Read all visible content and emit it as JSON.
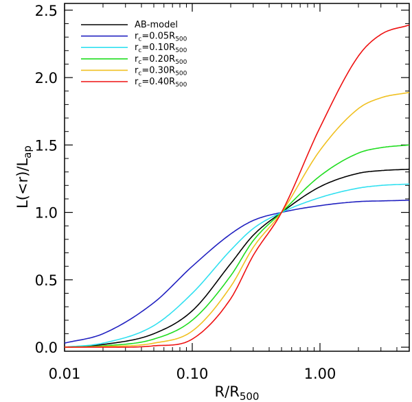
{
  "chart_data": {
    "type": "line",
    "xlabel": {
      "main": "R/R",
      "sub": "500"
    },
    "ylabel": {
      "main": "L(<r)/L",
      "sub": "ap"
    },
    "xscale": "log",
    "xlim": [
      0.01,
      5.0
    ],
    "ylim": [
      -0.03,
      2.55
    ],
    "xticks": [
      0.01,
      0.1,
      1.0
    ],
    "xtick_labels": [
      "0.01",
      "0.10",
      "1.00"
    ],
    "yticks": [
      0.0,
      0.5,
      1.0,
      1.5,
      2.0,
      2.5
    ],
    "ytick_labels": [
      "0.0",
      "0.5",
      "1.0",
      "1.5",
      "2.0",
      "2.5"
    ],
    "grid": false,
    "legend_position": "top-left",
    "series": [
      {
        "name": "AB-model",
        "label_main": "AB-model",
        "label_sub": "",
        "label_tail": "",
        "color": "#000000",
        "x": [
          0.01,
          0.02,
          0.05,
          0.1,
          0.2,
          0.3,
          0.5,
          1.0,
          2.0,
          3.0,
          5.0
        ],
        "y": [
          0.0,
          0.02,
          0.1,
          0.27,
          0.62,
          0.83,
          1.0,
          1.19,
          1.29,
          1.31,
          1.32
        ]
      },
      {
        "name": "r_c=0.05R_500",
        "label_main": "r",
        "label_sub": "c",
        "label_mid": "=0.05R",
        "label_tail": "500",
        "color": "#2020c0",
        "x": [
          0.01,
          0.02,
          0.05,
          0.1,
          0.2,
          0.3,
          0.5,
          1.0,
          2.0,
          3.0,
          5.0
        ],
        "y": [
          0.03,
          0.1,
          0.33,
          0.6,
          0.84,
          0.94,
          1.0,
          1.05,
          1.08,
          1.085,
          1.09
        ]
      },
      {
        "name": "r_c=0.10R_500",
        "label_main": "r",
        "label_sub": "c",
        "label_mid": "=0.10R",
        "label_tail": "500",
        "color": "#30e0f0",
        "x": [
          0.01,
          0.02,
          0.05,
          0.1,
          0.2,
          0.3,
          0.5,
          1.0,
          2.0,
          3.0,
          5.0
        ],
        "y": [
          0.0,
          0.03,
          0.16,
          0.4,
          0.72,
          0.88,
          1.0,
          1.11,
          1.18,
          1.2,
          1.21
        ]
      },
      {
        "name": "r_c=0.20R_500",
        "label_main": "r",
        "label_sub": "c",
        "label_mid": "=0.20R",
        "label_tail": "500",
        "color": "#20dd20",
        "x": [
          0.01,
          0.02,
          0.05,
          0.1,
          0.2,
          0.3,
          0.5,
          1.0,
          2.0,
          3.0,
          5.0
        ],
        "y": [
          0.0,
          0.01,
          0.06,
          0.2,
          0.53,
          0.79,
          1.0,
          1.27,
          1.44,
          1.48,
          1.5
        ]
      },
      {
        "name": "r_c=0.30R_500",
        "label_main": "r",
        "label_sub": "c",
        "label_mid": "=0.30R",
        "label_tail": "500",
        "color": "#f0c020",
        "x": [
          0.01,
          0.02,
          0.05,
          0.1,
          0.2,
          0.3,
          0.5,
          1.0,
          2.0,
          3.0,
          5.0
        ],
        "y": [
          0.0,
          0.005,
          0.03,
          0.12,
          0.45,
          0.74,
          1.0,
          1.46,
          1.77,
          1.85,
          1.89
        ]
      },
      {
        "name": "r_c=0.40R_500",
        "label_main": "r",
        "label_sub": "c",
        "label_mid": "=0.40R",
        "label_tail": "500",
        "color": "#ee1010",
        "x": [
          0.01,
          0.02,
          0.05,
          0.1,
          0.2,
          0.3,
          0.5,
          1.0,
          2.0,
          3.0,
          5.0
        ],
        "y": [
          0.0,
          0.0,
          0.01,
          0.06,
          0.36,
          0.68,
          1.0,
          1.63,
          2.16,
          2.32,
          2.39
        ]
      }
    ]
  }
}
